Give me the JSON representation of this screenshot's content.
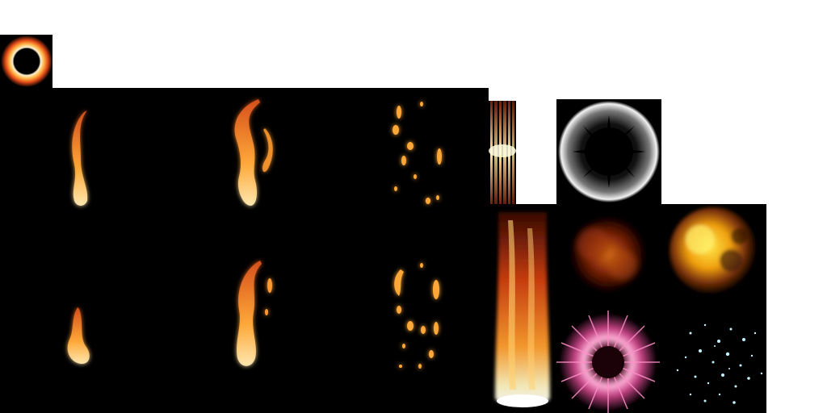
{
  "atlas": {
    "background_color": "#ffffff",
    "sprite_background_color": "#000000",
    "sprites": [
      {
        "name": "fire-ring",
        "icon": "fire-ring-icon"
      },
      {
        "name": "flame-tongue-frame-1",
        "icon": "flame-tongue-icon"
      },
      {
        "name": "flame-tongue-frame-2",
        "icon": "flame-tongue-icon"
      },
      {
        "name": "flame-sparks-frame-1",
        "icon": "flame-sparks-icon"
      },
      {
        "name": "flame-tongue-frame-3",
        "icon": "flame-tongue-icon"
      },
      {
        "name": "flame-tongue-frame-4",
        "icon": "flame-tongue-icon"
      },
      {
        "name": "flame-sparks-frame-2",
        "icon": "flame-sparks-icon"
      },
      {
        "name": "fire-streaks",
        "icon": "fire-streaks-icon"
      },
      {
        "name": "shockwave-ring",
        "icon": "shockwave-ring-icon"
      },
      {
        "name": "fire-pillar",
        "icon": "fire-pillar-icon"
      },
      {
        "name": "smoke-cloud-dark",
        "icon": "smoke-cloud-icon"
      },
      {
        "name": "explosion-cloud",
        "icon": "explosion-cloud-icon"
      },
      {
        "name": "energy-burst",
        "icon": "energy-burst-icon"
      },
      {
        "name": "sparkle-particles",
        "icon": "sparkle-particles-icon"
      }
    ],
    "colors": {
      "flame_core": "#fff6d0",
      "flame_mid": "#ffae3a",
      "flame_outer": "#e0521a",
      "burst_pink": "#ff7fb8",
      "sparkle_cyan": "#bff4ff"
    }
  }
}
